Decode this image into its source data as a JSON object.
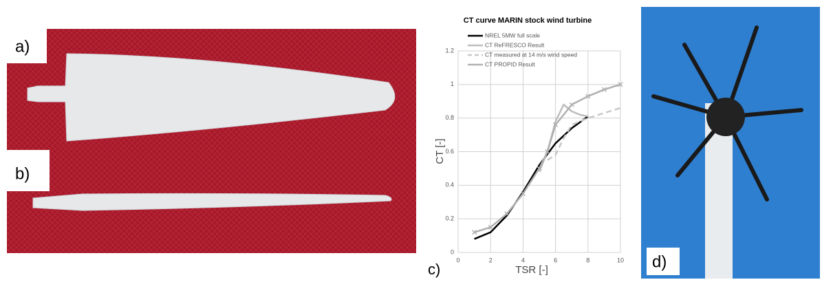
{
  "labels": [
    "a)",
    "b)",
    "c)",
    "d)"
  ],
  "chart_data": {
    "type": "line",
    "title": "CT curve MARIN stock wind turbine",
    "xlabel": "TSR [-]",
    "ylabel": "CT [-]",
    "xlim": [
      0,
      10
    ],
    "xticks": [
      0,
      2,
      4,
      6,
      8,
      10
    ],
    "ylim": [
      0,
      1.2
    ],
    "yticks": [
      0,
      0.2,
      0.4,
      0.6,
      0.8,
      1,
      1.2
    ],
    "grid": true,
    "series": [
      {
        "name": "NREL 5MW full scale",
        "color": "#000000",
        "style": "solid",
        "x": [
          1,
          2,
          3,
          4,
          5,
          6,
          7,
          8
        ],
        "values": [
          0.08,
          0.12,
          0.22,
          0.36,
          0.52,
          0.65,
          0.74,
          0.81
        ]
      },
      {
        "name": "CT ReFRESCO Result",
        "color": "#bdbdbd",
        "style": "solid",
        "x": [
          5,
          5.5,
          6,
          6.5,
          7,
          7.5,
          8
        ],
        "values": [
          0.48,
          0.6,
          0.78,
          0.88,
          0.84,
          0.82,
          0.81
        ]
      },
      {
        "name": "CT measured at 14 m/s wind speed",
        "color": "#c8c8c8",
        "style": "dashed",
        "x": [
          5.5,
          6,
          6.5,
          7,
          8,
          9,
          10
        ],
        "values": [
          0.55,
          0.58,
          0.68,
          0.76,
          0.8,
          0.83,
          0.86
        ]
      },
      {
        "name": "CT PROPID Result",
        "color": "#b0b0b0",
        "style": "marked",
        "x": [
          1,
          2,
          3,
          4,
          5,
          5.5,
          6,
          7,
          8,
          9,
          10
        ],
        "values": [
          0.12,
          0.15,
          0.23,
          0.35,
          0.5,
          0.6,
          0.76,
          0.88,
          0.93,
          0.97,
          1.0
        ]
      }
    ]
  }
}
